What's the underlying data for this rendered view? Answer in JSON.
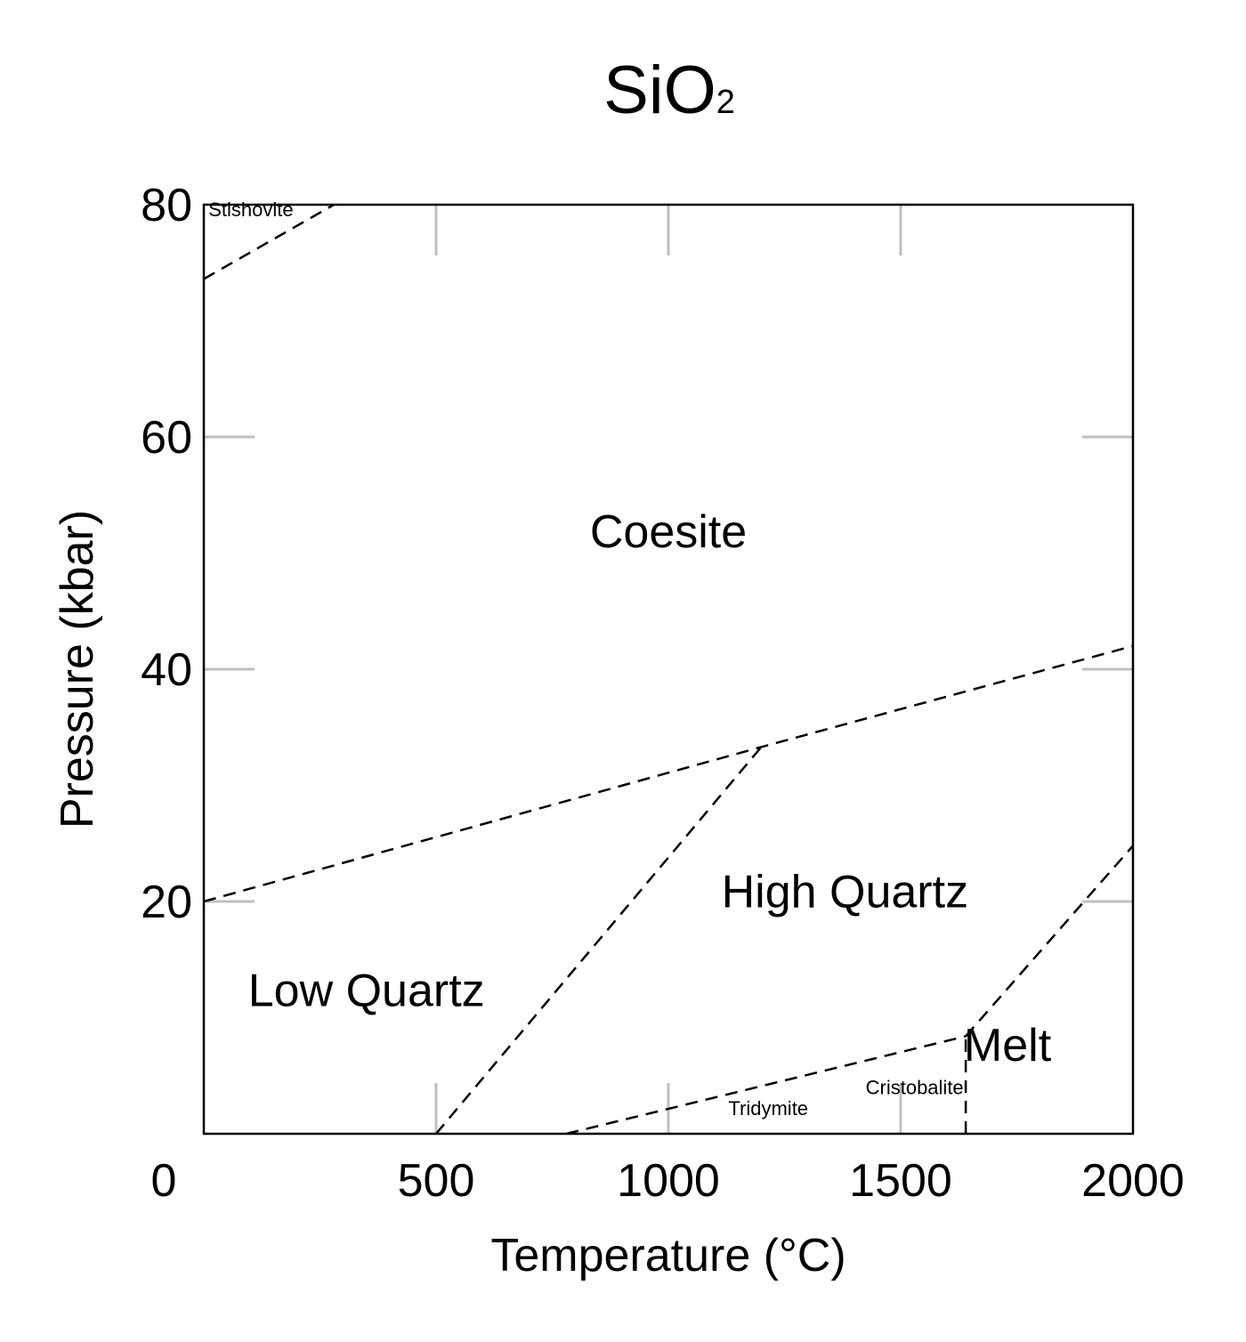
{
  "chart_data": {
    "type": "phase-diagram",
    "title": "SiO",
    "title_subscript": "2",
    "xlabel": "Temperature (°C)",
    "ylabel": "Pressure (kbar)",
    "xlim": [
      0,
      2000
    ],
    "ylim": [
      0,
      80
    ],
    "x_ticks": [
      0,
      500,
      1000,
      1500,
      2000
    ],
    "y_ticks": [
      20,
      40,
      60,
      80
    ],
    "grid": false,
    "regions": [
      {
        "name": "Stishovite",
        "label": "Stishovite",
        "x": 10,
        "y": 79,
        "size": "small"
      },
      {
        "name": "Coesite",
        "label": "Coesite",
        "x": 1000,
        "y": 50.5,
        "size": "large"
      },
      {
        "name": "High Quartz",
        "label": "High Quartz",
        "x": 1380,
        "y": 19.5,
        "size": "large"
      },
      {
        "name": "Low Quartz",
        "label": "Low Quartz",
        "x": 350,
        "y": 11,
        "size": "large"
      },
      {
        "name": "Melt",
        "label": "Melt",
        "x": 1730,
        "y": 6.3,
        "size": "large"
      },
      {
        "name": "Cristobalite",
        "label": "Cristobalite",
        "x": 1530,
        "y": 3.4,
        "size": "small"
      },
      {
        "name": "Tridymite",
        "label": "Tridymite",
        "x": 1215,
        "y": 1.6,
        "size": "small"
      }
    ],
    "boundaries": [
      {
        "name": "coesite-stishovite",
        "points": [
          [
            0,
            73.6
          ],
          [
            280,
            80
          ]
        ]
      },
      {
        "name": "quartz-coesite",
        "points": [
          [
            0,
            20
          ],
          [
            1200,
            33.3
          ],
          [
            2000,
            42
          ]
        ]
      },
      {
        "name": "low-high-quartz",
        "points": [
          [
            500,
            0
          ],
          [
            1200,
            33.3
          ]
        ]
      },
      {
        "name": "quartz-tridymite-cristobalite",
        "points": [
          [
            780,
            0
          ],
          [
            1640,
            8.4
          ]
        ]
      },
      {
        "name": "melting-curve",
        "points": [
          [
            1640,
            8.4
          ],
          [
            2000,
            24.8
          ]
        ]
      },
      {
        "name": "cristobalite-melt",
        "points": [
          [
            1640,
            0
          ],
          [
            1640,
            8.4
          ]
        ]
      }
    ]
  }
}
